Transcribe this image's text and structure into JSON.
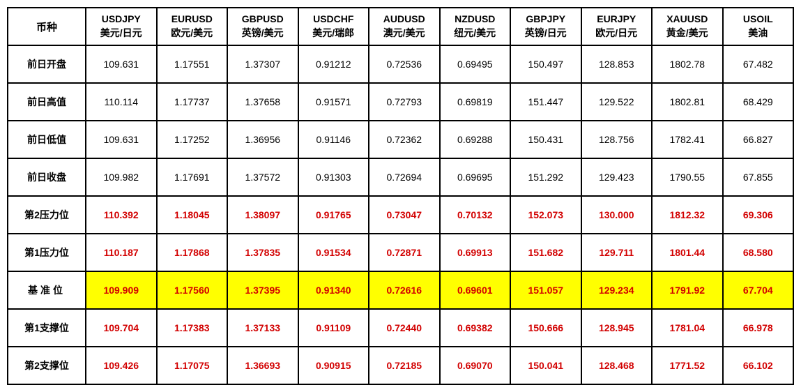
{
  "corner_label": "币种",
  "columns": [
    {
      "symbol": "USDJPY",
      "pair": "美元/日元"
    },
    {
      "symbol": "EURUSD",
      "pair": "欧元/美元"
    },
    {
      "symbol": "GBPUSD",
      "pair": "英镑/美元"
    },
    {
      "symbol": "USDCHF",
      "pair": "美元/瑞郎"
    },
    {
      "symbol": "AUDUSD",
      "pair": "澳元/美元"
    },
    {
      "symbol": "NZDUSD",
      "pair": "纽元/美元"
    },
    {
      "symbol": "GBPJPY",
      "pair": "英镑/日元"
    },
    {
      "symbol": "EURJPY",
      "pair": "欧元/日元"
    },
    {
      "symbol": "XAUUSD",
      "pair": "黄金/美元"
    },
    {
      "symbol": "USOIL",
      "pair": "美油"
    }
  ],
  "rows": [
    {
      "label": "前日开盘",
      "style": "plain",
      "cells": [
        "109.631",
        "1.17551",
        "1.37307",
        "0.91212",
        "0.72536",
        "0.69495",
        "150.497",
        "128.853",
        "1802.78",
        "67.482"
      ]
    },
    {
      "label": "前日高值",
      "style": "plain",
      "cells": [
        "110.114",
        "1.17737",
        "1.37658",
        "0.91571",
        "0.72793",
        "0.69819",
        "151.447",
        "129.522",
        "1802.81",
        "68.429"
      ]
    },
    {
      "label": "前日低值",
      "style": "plain",
      "cells": [
        "109.631",
        "1.17252",
        "1.36956",
        "0.91146",
        "0.72362",
        "0.69288",
        "150.431",
        "128.756",
        "1782.41",
        "66.827"
      ]
    },
    {
      "label": "前日收盘",
      "style": "plain",
      "cells": [
        "109.982",
        "1.17691",
        "1.37572",
        "0.91303",
        "0.72694",
        "0.69695",
        "151.292",
        "129.423",
        "1790.55",
        "67.855"
      ]
    },
    {
      "label": "第2压力位",
      "style": "shade",
      "cells": [
        "110.392",
        "1.18045",
        "1.38097",
        "0.91765",
        "0.73047",
        "0.70132",
        "152.073",
        "130.000",
        "1812.32",
        "69.306"
      ]
    },
    {
      "label": "第1压力位",
      "style": "shade",
      "cells": [
        "110.187",
        "1.17868",
        "1.37835",
        "0.91534",
        "0.72871",
        "0.69913",
        "151.682",
        "129.711",
        "1801.44",
        "68.580"
      ]
    },
    {
      "label": "基准位",
      "style": "pivot",
      "cells": [
        "109.909",
        "1.17560",
        "1.37395",
        "0.91340",
        "0.72616",
        "0.69601",
        "151.057",
        "129.234",
        "1791.92",
        "67.704"
      ]
    },
    {
      "label": "第1支撑位",
      "style": "shade",
      "cells": [
        "109.704",
        "1.17383",
        "1.37133",
        "0.91109",
        "0.72440",
        "0.69382",
        "150.666",
        "128.945",
        "1781.04",
        "66.978"
      ]
    },
    {
      "label": "第2支撑位",
      "style": "shade",
      "cells": [
        "109.426",
        "1.17075",
        "1.36693",
        "0.90915",
        "0.72185",
        "0.69070",
        "150.041",
        "128.468",
        "1771.52",
        "66.102"
      ]
    }
  ],
  "colors": {
    "border": "#000000",
    "shade_bg": "#dceaf0",
    "pivot_label_bg": "#66b847",
    "pivot_cell_bg": "#ffff00",
    "red_text": "#d20000"
  }
}
